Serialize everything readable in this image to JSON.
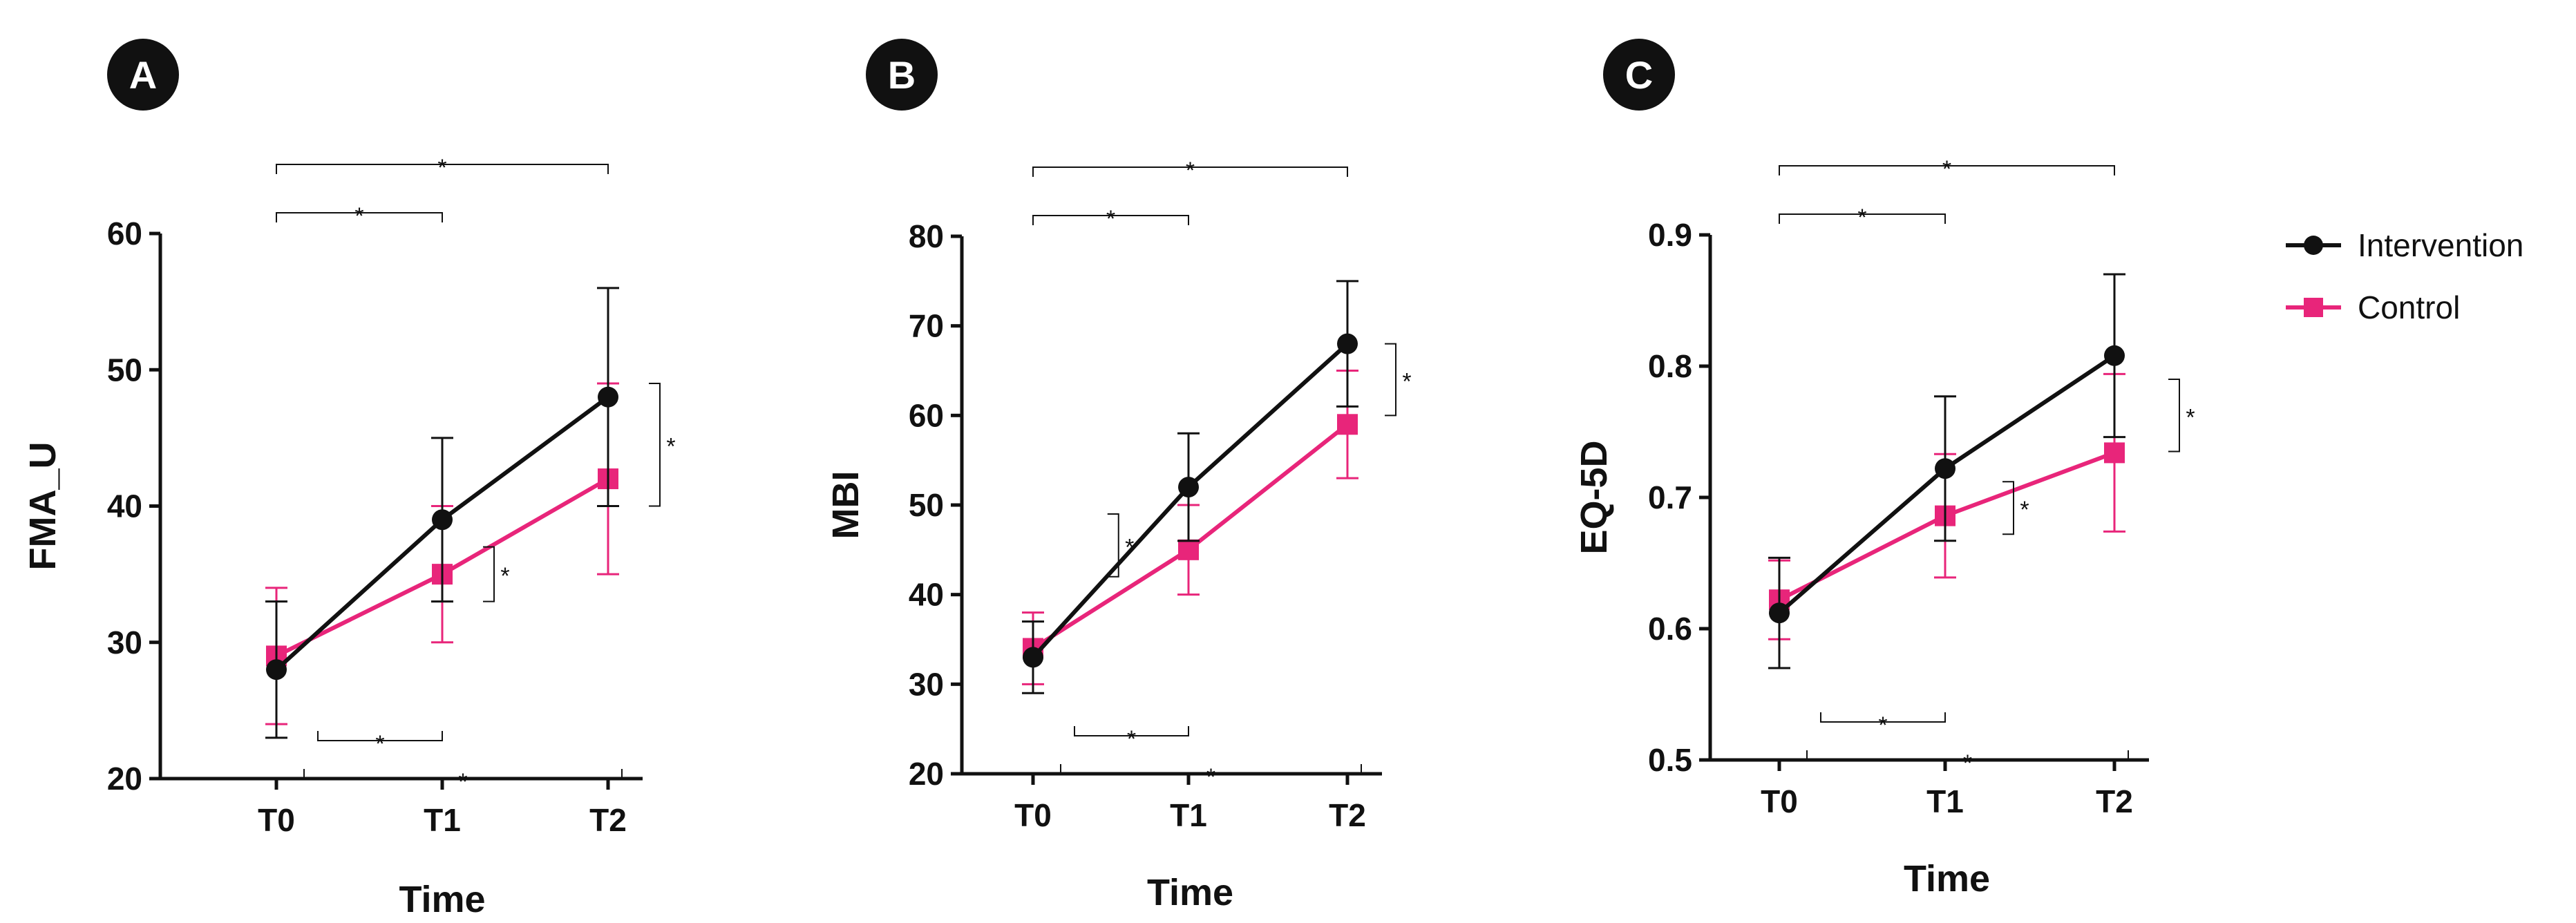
{
  "figure": {
    "legend": {
      "series": [
        {
          "name": "Intervention",
          "color": "#111111",
          "marker": "circle"
        },
        {
          "name": "Control",
          "color": "#e8257a",
          "marker": "square"
        }
      ]
    }
  },
  "chart_data": [
    {
      "panel_label": "A",
      "type": "line",
      "title": "",
      "xlabel": "Time",
      "ylabel": "FMA_U",
      "categories": [
        "T0",
        "T1",
        "T2"
      ],
      "ylim": [
        20,
        60
      ],
      "yticks": [
        20,
        30,
        40,
        50,
        60
      ],
      "tick_decimals": 0,
      "series": [
        {
          "name": "Intervention",
          "values": [
            28,
            39,
            48
          ],
          "err": [
            5,
            6,
            8
          ]
        },
        {
          "name": "Control",
          "values": [
            29,
            35,
            42
          ],
          "err": [
            5,
            5,
            7
          ]
        }
      ],
      "significance": [
        {
          "kind": "top",
          "from": 0,
          "to": 2,
          "level": 1,
          "label": "*"
        },
        {
          "kind": "top",
          "from": 0,
          "to": 1,
          "level": 0,
          "label": "*"
        },
        {
          "kind": "bottom",
          "from": 0,
          "to": 1,
          "level": 0,
          "label": "*"
        },
        {
          "kind": "bottom",
          "from": 0,
          "to": 2,
          "level": 1,
          "label": "*"
        },
        {
          "kind": "vertical",
          "at": 1,
          "y1": 33,
          "y2": 37,
          "label": "*"
        },
        {
          "kind": "vertical",
          "at": 2,
          "y1": 40,
          "y2": 49,
          "label": "*"
        }
      ]
    },
    {
      "panel_label": "B",
      "type": "line",
      "title": "",
      "xlabel": "Time",
      "ylabel": "MBI",
      "categories": [
        "T0",
        "T1",
        "T2"
      ],
      "ylim": [
        20,
        80
      ],
      "yticks": [
        20,
        30,
        40,
        50,
        60,
        70,
        80
      ],
      "tick_decimals": 0,
      "series": [
        {
          "name": "Intervention",
          "values": [
            33,
            52,
            68
          ],
          "err": [
            4,
            6,
            7
          ]
        },
        {
          "name": "Control",
          "values": [
            34,
            45,
            59
          ],
          "err": [
            4,
            5,
            6
          ]
        }
      ],
      "significance": [
        {
          "kind": "top",
          "from": 0,
          "to": 2,
          "level": 1,
          "label": "*"
        },
        {
          "kind": "top",
          "from": 0,
          "to": 1,
          "level": 0,
          "label": "*"
        },
        {
          "kind": "bottom",
          "from": 0,
          "to": 1,
          "level": 0,
          "label": "*"
        },
        {
          "kind": "bottom",
          "from": 0,
          "to": 2,
          "level": 1,
          "label": "*"
        },
        {
          "kind": "vertical",
          "at": 0.55,
          "y1": 42,
          "y2": 49,
          "label": "*"
        },
        {
          "kind": "vertical",
          "at": 2,
          "y1": 60,
          "y2": 68,
          "label": "*"
        }
      ]
    },
    {
      "panel_label": "C",
      "type": "line",
      "title": "",
      "xlabel": "Time",
      "ylabel": "EQ-5D",
      "categories": [
        "T0",
        "T1",
        "T2"
      ],
      "ylim": [
        0.5,
        0.9
      ],
      "yticks": [
        0.5,
        0.6,
        0.7,
        0.8,
        0.9
      ],
      "tick_decimals": 1,
      "series": [
        {
          "name": "Intervention",
          "values": [
            0.612,
            0.722,
            0.808
          ],
          "err": [
            0.042,
            0.055,
            0.062
          ]
        },
        {
          "name": "Control",
          "values": [
            0.622,
            0.686,
            0.734
          ],
          "err": [
            0.03,
            0.047,
            0.06
          ]
        }
      ],
      "significance": [
        {
          "kind": "top",
          "from": 0,
          "to": 2,
          "level": 1,
          "label": "*"
        },
        {
          "kind": "top",
          "from": 0,
          "to": 1,
          "level": 0,
          "label": "*"
        },
        {
          "kind": "bottom",
          "from": 0,
          "to": 1,
          "level": 0,
          "label": "*"
        },
        {
          "kind": "bottom",
          "from": 0,
          "to": 2,
          "level": 1,
          "label": "*"
        },
        {
          "kind": "vertical",
          "at": 1.1,
          "y1": 0.672,
          "y2": 0.712,
          "label": "*"
        },
        {
          "kind": "vertical",
          "at": 2.1,
          "y1": 0.735,
          "y2": 0.79,
          "label": "*"
        }
      ]
    }
  ]
}
